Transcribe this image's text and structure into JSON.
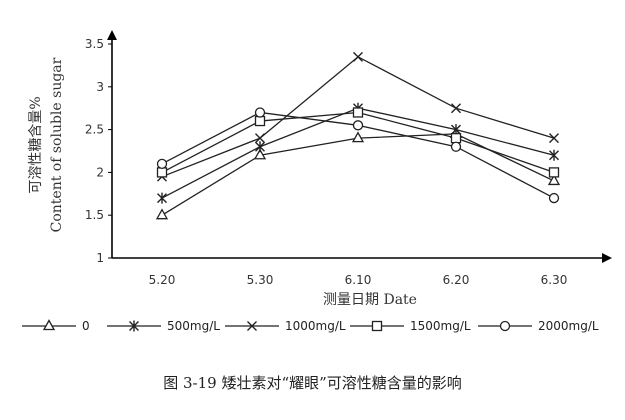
{
  "chart_data": {
    "type": "line",
    "categories": [
      "5.20",
      "5.30",
      "6.10",
      "6.20",
      "6.30"
    ],
    "series": [
      {
        "name": "0",
        "marker": "triangle",
        "values": [
          1.5,
          2.2,
          2.4,
          2.45,
          1.9
        ]
      },
      {
        "name": "500mg/L",
        "marker": "asterisk",
        "values": [
          1.7,
          2.3,
          2.75,
          2.5,
          2.2
        ]
      },
      {
        "name": "1000mg/L",
        "marker": "cross",
        "values": [
          1.95,
          2.4,
          3.35,
          2.75,
          2.4
        ]
      },
      {
        "name": "1500mg/L",
        "marker": "square",
        "values": [
          2.0,
          2.6,
          2.7,
          2.4,
          2.0
        ]
      },
      {
        "name": "2000mg/L",
        "marker": "circle",
        "values": [
          2.1,
          2.7,
          2.55,
          2.3,
          1.7
        ]
      }
    ],
    "ylim": [
      1,
      3.5
    ],
    "yticks": [
      "1",
      "1.5",
      "2",
      "2.5",
      "3",
      "3.5"
    ],
    "xlabel": "测量日期 Date",
    "ylabel": "可溶性糖含量%",
    "ylabel_en": "Content of soluble sugar",
    "grid": false,
    "legend_position": "bottom",
    "line_color": "#222222"
  },
  "caption": "图 3-19 矮壮素对“耀眼”可溶性糖含量的影响"
}
